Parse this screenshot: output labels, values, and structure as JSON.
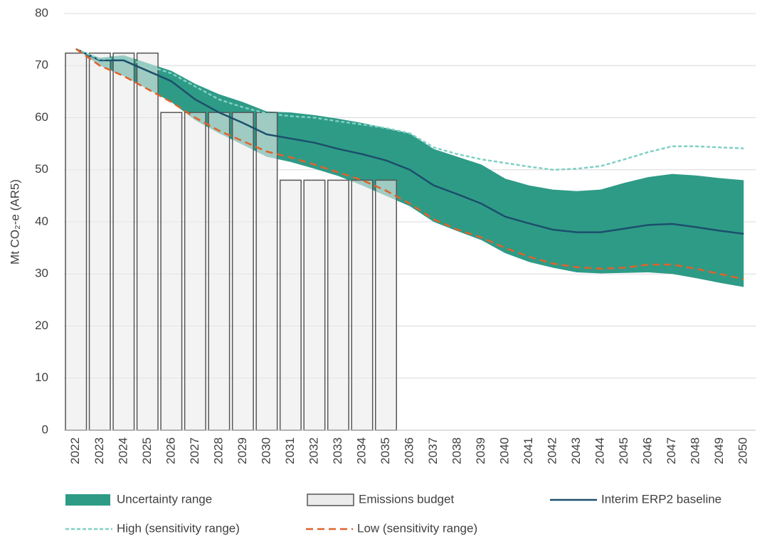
{
  "chart_data": {
    "type": "combo",
    "y_label": "Mt CO₂-e (AR5)",
    "categories": [
      "2022",
      "2023",
      "2024",
      "2025",
      "2026",
      "2027",
      "2028",
      "2029",
      "2030",
      "2031",
      "2032",
      "2033",
      "2034",
      "2035",
      "2036",
      "2037",
      "2038",
      "2039",
      "2040",
      "2041",
      "2042",
      "2043",
      "2044",
      "2045",
      "2046",
      "2047",
      "2048",
      "2049",
      "2050"
    ],
    "ylim": [
      0,
      80
    ],
    "yticks": [
      0,
      10,
      20,
      30,
      40,
      50,
      60,
      70,
      80
    ],
    "grid": true,
    "series": [
      {
        "name": "Uncertainty range",
        "type": "band",
        "color": "#2e9b87",
        "high": [
          73.2,
          71.5,
          72,
          70.5,
          69,
          66.5,
          64.5,
          63,
          61.2,
          61,
          60.5,
          59.8,
          59,
          58,
          57,
          54,
          52.5,
          51,
          48.3,
          47,
          46.2,
          45.9,
          46.2,
          47.5,
          48.6,
          49.2,
          48.9,
          48.4,
          48
        ],
        "low": [
          73.2,
          70,
          68,
          65.5,
          63,
          59.5,
          57,
          54.8,
          52.5,
          51.5,
          50.2,
          48.8,
          47,
          45,
          43,
          40,
          38.2,
          36.5,
          34,
          32.3,
          31.2,
          30.3,
          30.1,
          30.2,
          30.3,
          30,
          29.2,
          28.3,
          27.5
        ]
      },
      {
        "name": "Emissions budget",
        "type": "bar",
        "color": "#ebebeb",
        "values": [
          72.4,
          72.4,
          72.4,
          72.4,
          61,
          61,
          61,
          61,
          61,
          48,
          48,
          48,
          48,
          48,
          null,
          null,
          null,
          null,
          null,
          null,
          null,
          null,
          null,
          null,
          null,
          null,
          null,
          null,
          null
        ]
      },
      {
        "name": "Interim ERP2 baseline",
        "type": "line",
        "color": "#1b4f6b",
        "values": [
          73.2,
          71,
          71,
          69,
          67,
          63.5,
          61,
          59,
          56.8,
          56,
          55.2,
          54,
          53,
          51.8,
          50,
          47,
          45.3,
          43.5,
          41,
          39.7,
          38.5,
          38,
          38,
          38.7,
          39.4,
          39.6,
          39,
          38.3,
          37.7
        ]
      },
      {
        "name": "High (sensitivity range)",
        "type": "dashed",
        "color": "#7fd0c4",
        "values": [
          73.2,
          71.2,
          71.5,
          70,
          68.5,
          66,
          63.5,
          62,
          60.8,
          60.3,
          60,
          59.3,
          58.7,
          58,
          57,
          54.3,
          53,
          52,
          51.3,
          50.6,
          50,
          50.2,
          50.7,
          52,
          53.4,
          54.5,
          54.5,
          54.3,
          54.1
        ]
      },
      {
        "name": "Low (sensitivity range)",
        "type": "dashed",
        "color": "#e0622a",
        "values": [
          73.2,
          70,
          68,
          65.5,
          63,
          60,
          57.5,
          55.5,
          53.5,
          52.4,
          51,
          49.5,
          48,
          46,
          43.5,
          40.5,
          38.5,
          37,
          35,
          33.3,
          32,
          31.3,
          31,
          31.2,
          31.8,
          31.8,
          31,
          30,
          29
        ]
      }
    ]
  }
}
